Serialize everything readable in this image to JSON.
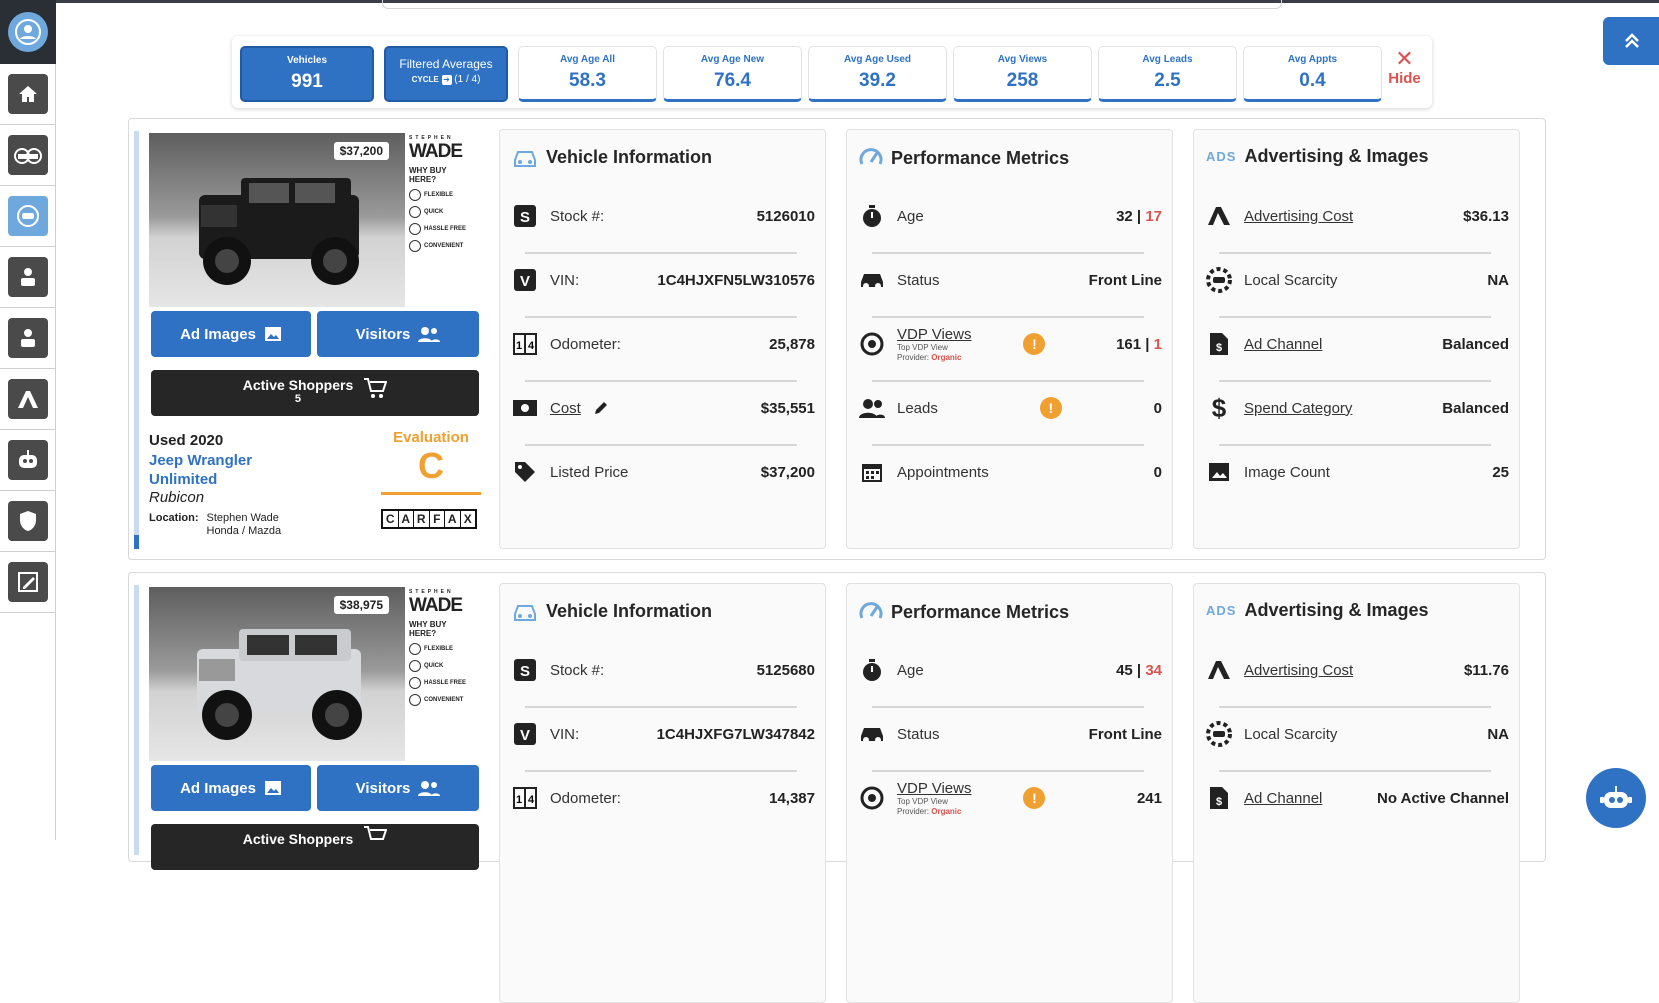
{
  "stats": {
    "vehicles_label": "Vehicles",
    "vehicles_value": "991",
    "filtered_label": "Filtered Averages",
    "cycle_label": "CYCLE",
    "cycle_value": "(1 / 4)",
    "items": [
      {
        "label": "Avg Age All",
        "value": "58.3"
      },
      {
        "label": "Avg Age New",
        "value": "76.4"
      },
      {
        "label": "Avg Age Used",
        "value": "39.2"
      },
      {
        "label": "Avg Views",
        "value": "258"
      },
      {
        "label": "Avg Leads",
        "value": "2.5"
      },
      {
        "label": "Avg Appts",
        "value": "0.4"
      }
    ],
    "hide_label": "Hide"
  },
  "sidebar": {
    "items": [
      "home-icon",
      "inventory-icon",
      "vehicle-icon",
      "user-icon",
      "user-icon",
      "ads-icon",
      "robot-icon",
      "shield-icon",
      "edit-icon"
    ]
  },
  "dealer": {
    "brand_top": "STEPHEN",
    "brand": "WADE",
    "why": "WHY BUY HERE?",
    "perks": [
      "FLEXIBLE",
      "QUICK",
      "HASSLE FREE",
      "CONVENIENT"
    ]
  },
  "labels": {
    "ad_images": "Ad Images",
    "visitors": "Visitors",
    "active_shoppers": "Active Shoppers",
    "evaluation": "Evaluation",
    "location": "Location:",
    "vehicle_info": "Vehicle Information",
    "performance": "Performance Metrics",
    "advertising": "Advertising & Images",
    "ads_badge": "ADS",
    "stock": "Stock #:",
    "vin": "VIN:",
    "odometer": "Odometer:",
    "cost": "Cost",
    "listed_price": "Listed Price",
    "age": "Age",
    "status": "Status",
    "vdp_views": "VDP Views",
    "top_vdp": "Top VDP View",
    "provider": "Provider:",
    "leads": "Leads",
    "appointments": "Appointments",
    "advertising_cost": "Advertising Cost",
    "local_scarcity": "Local Scarcity",
    "ad_channel": "Ad Channel",
    "spend_category": "Spend Category",
    "image_count": "Image Count",
    "carfax": [
      "C",
      "A",
      "R",
      "F",
      "A",
      "X"
    ]
  },
  "vehicles": [
    {
      "price_tag": "$37,200",
      "active_shoppers": "5",
      "condition_year": "Used 2020",
      "model": "Jeep Wrangler Unlimited",
      "trim": "Rubicon",
      "location": "Stephen Wade Honda / Mazda",
      "grade": "C",
      "stock": "5126010",
      "vin": "1C4HJXFN5LW310576",
      "odometer": "25,878",
      "cost": "$35,551",
      "listed_price": "$37,200",
      "age": "32",
      "age_secondary": "17",
      "status": "Front Line",
      "provider": "Organic",
      "vdp": "161",
      "vdp_secondary": "1",
      "leads": "0",
      "appointments": "0",
      "advertising_cost": "$36.13",
      "local_scarcity": "NA",
      "ad_channel": "Balanced",
      "spend_category": "Balanced",
      "image_count": "25",
      "body_color": "#1b1b1b"
    },
    {
      "price_tag": "$38,975",
      "condition_year": "",
      "stock": "5125680",
      "vin": "1C4HJXFG7LW347842",
      "odometer": "14,387",
      "age": "45",
      "age_secondary": "34",
      "status": "Front Line",
      "provider": "Organic",
      "vdp": "241",
      "advertising_cost": "$11.76",
      "local_scarcity": "NA",
      "ad_channel": "No Active Channel",
      "body_color": "#d7d9dc"
    }
  ],
  "colors": {
    "accent": "#2f72c4",
    "warn": "#f0a030",
    "red": "#d9534f",
    "dark": "#262626"
  }
}
